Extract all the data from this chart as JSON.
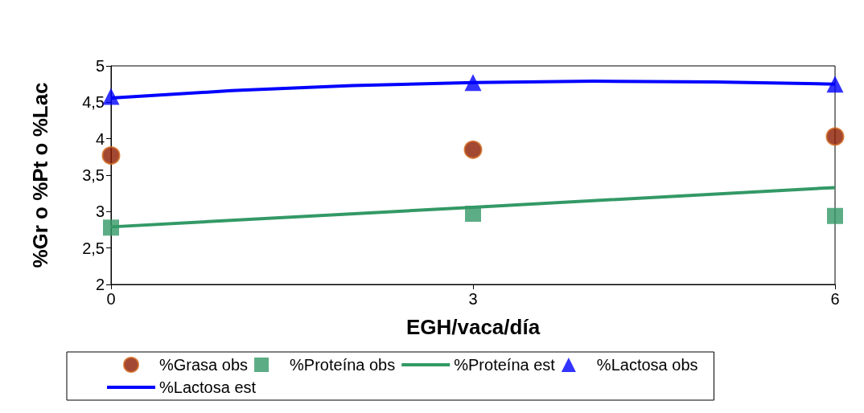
{
  "chart_data": {
    "type": "scatter",
    "xlabel": "EGH/vaca/día",
    "ylabel": "%Gr o %Pt o %Lac",
    "xlim": [
      0,
      6
    ],
    "xticks": [
      0,
      3,
      6
    ],
    "ylim": [
      2,
      5
    ],
    "yticks": [
      {
        "value": 2,
        "label": "2"
      },
      {
        "value": 2.5,
        "label": "2,5"
      },
      {
        "value": 3,
        "label": "3"
      },
      {
        "value": 3.5,
        "label": "3,5"
      },
      {
        "value": 4,
        "label": "4"
      },
      {
        "value": 4.5,
        "label": "4,5"
      },
      {
        "value": 5,
        "label": "5"
      }
    ],
    "grid": false,
    "legend": "bottom",
    "series": [
      {
        "name": "%Grasa obs",
        "type": "scatter",
        "marker": "circle",
        "color": "#8b1a00",
        "x": [
          0,
          3,
          6
        ],
        "values": [
          3.77,
          3.85,
          4.03
        ]
      },
      {
        "name": "%Proteína obs",
        "type": "scatter",
        "marker": "square",
        "color": "#339966",
        "x": [
          0,
          3,
          6
        ],
        "values": [
          2.78,
          2.97,
          2.94
        ]
      },
      {
        "name": "%Proteína est",
        "type": "line",
        "marker": "none",
        "color": "#339966",
        "x": [
          0,
          3,
          6
        ],
        "values": [
          2.79,
          3.06,
          3.33
        ]
      },
      {
        "name": "%Lactosa obs",
        "type": "scatter",
        "marker": "triangle",
        "color": "#0000ff",
        "x": [
          0,
          3,
          6
        ],
        "values": [
          4.58,
          4.77,
          4.75
        ]
      },
      {
        "name": "%Lactosa est",
        "type": "line",
        "marker": "none",
        "color": "#0000ff",
        "x": [
          0,
          1,
          2,
          3,
          4,
          5,
          6
        ],
        "values": [
          4.56,
          4.66,
          4.73,
          4.77,
          4.79,
          4.78,
          4.75
        ]
      }
    ]
  }
}
